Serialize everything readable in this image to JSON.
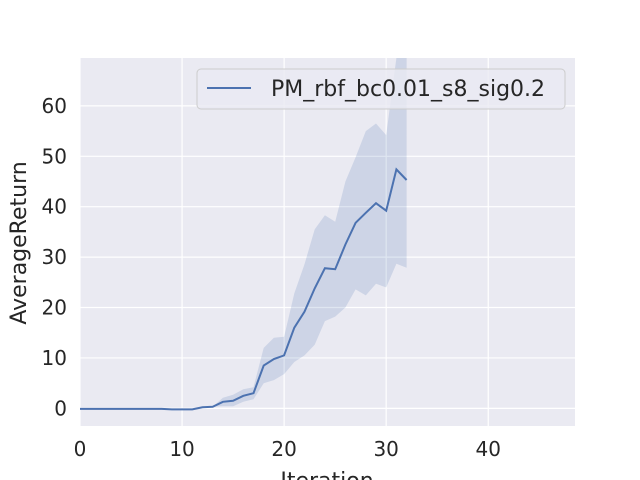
{
  "chart_data": {
    "type": "line",
    "title": "",
    "xlabel": "Iteration",
    "ylabel": "AverageReturn",
    "xlim": [
      0,
      48.5
    ],
    "ylim": [
      -3.5,
      69.5
    ],
    "xticks": [
      0,
      10,
      20,
      30,
      40
    ],
    "yticks": [
      0,
      10,
      20,
      30,
      40,
      50,
      60
    ],
    "grid": true,
    "legend_position": "top-right",
    "colors": {
      "background": "#eaeaf2",
      "grid": "#ffffff",
      "line": "#4c72b0",
      "band": "#4c72b0"
    },
    "series": [
      {
        "name": "PM_rbf_bc0.01_s8_sig0.2",
        "x": [
          0,
          1,
          2,
          3,
          4,
          5,
          6,
          7,
          8,
          9,
          10,
          11,
          12,
          13,
          14,
          15,
          16,
          17,
          18,
          19,
          20,
          21,
          22,
          23,
          24,
          25,
          26,
          27,
          28,
          29,
          30,
          31,
          32
        ],
        "y": [
          -0.1,
          -0.1,
          -0.1,
          -0.1,
          -0.1,
          -0.1,
          -0.1,
          -0.1,
          -0.1,
          -0.2,
          -0.2,
          -0.2,
          0.2,
          0.3,
          1.3,
          1.5,
          2.5,
          3.0,
          8.5,
          9.8,
          10.5,
          16.0,
          19.2,
          23.8,
          27.8,
          27.6,
          32.5,
          36.8,
          38.8,
          40.7,
          39.2,
          47.4,
          45.3
        ],
        "lower": [
          -0.1,
          -0.1,
          -0.1,
          -0.1,
          -0.1,
          -0.1,
          -0.1,
          -0.1,
          -0.1,
          -0.2,
          -0.2,
          -0.2,
          0.2,
          0.3,
          0.4,
          0.4,
          1.3,
          1.8,
          5.0,
          5.6,
          6.8,
          9.2,
          10.5,
          12.6,
          17.3,
          18.2,
          20.0,
          23.6,
          22.4,
          24.7,
          24.0,
          28.7,
          27.9
        ],
        "upper": [
          -0.1,
          -0.1,
          -0.1,
          -0.1,
          -0.1,
          -0.1,
          -0.1,
          -0.1,
          -0.1,
          -0.2,
          -0.2,
          -0.2,
          0.2,
          0.3,
          2.1,
          2.7,
          3.8,
          4.2,
          12.0,
          14.0,
          14.2,
          22.8,
          28.6,
          35.5,
          38.3,
          37.0,
          45.0,
          49.8,
          55.0,
          56.5,
          54.2,
          69.5,
          69.5
        ]
      }
    ]
  }
}
